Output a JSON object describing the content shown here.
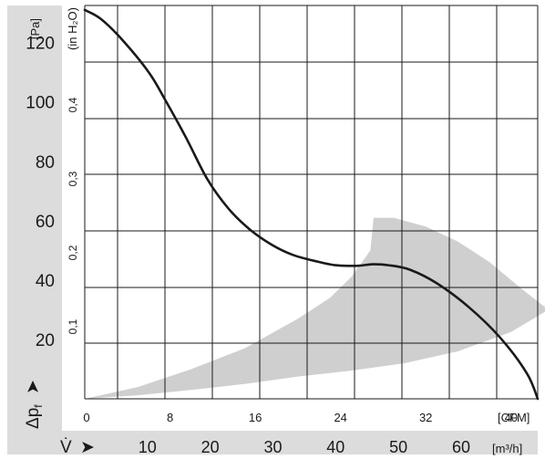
{
  "chart_data": {
    "type": "line",
    "primary_y_unit": "[Pa]",
    "secondary_y_unit": "(in H₂O)",
    "primary_x_unit": "[CFM]",
    "secondary_x_unit": "[m³/h]",
    "y_symbol": "Δp",
    "y_symbol_sub": "f",
    "x_symbol": "V̇",
    "arrow": "➤",
    "ylim": [
      0,
      132.5
    ],
    "xlim": [
      0,
      42.5
    ],
    "y_ticks": [
      20,
      40,
      60,
      80,
      100,
      120
    ],
    "y_tick_labels": [
      "20",
      "40",
      "60",
      "80",
      "100",
      "120"
    ],
    "y2_ticks": [
      24.9,
      49.8,
      74.7,
      99.6
    ],
    "y2_tick_labels": [
      "0,1",
      "0,2",
      "0,3",
      "0,4"
    ],
    "x_ticks": [
      0,
      8,
      16,
      24,
      32,
      40
    ],
    "x_tick_labels": [
      "0",
      "8",
      "16",
      "24",
      "32",
      "40"
    ],
    "x2_ticks": [
      5.886,
      11.772,
      17.658,
      23.544,
      29.43,
      35.316
    ],
    "x2_tick_labels": [
      "10",
      "20",
      "30",
      "40",
      "50",
      "60"
    ],
    "grid": true,
    "region_color": "#cfcfcf",
    "curve_color": "#1a1a1a",
    "sidebar_color": "#dcdcdc",
    "series": [
      {
        "x": [
          0,
          1.5,
          3.5,
          6,
          7.5,
          9.5,
          11.5,
          13.5,
          15.5,
          17.5,
          19.5,
          21.5,
          23.5,
          25.5,
          27,
          28.5,
          30.5,
          33,
          36,
          39,
          41.5,
          42.5
        ],
        "y": [
          131,
          128,
          121,
          110,
          101,
          88,
          74,
          64,
          57,
          52,
          48.5,
          46.5,
          45,
          44.8,
          45.3,
          45,
          43.5,
          39,
          31,
          20.5,
          8.5,
          0
        ]
      }
    ],
    "region": {
      "upper": {
        "x": [
          0,
          5,
          10,
          15,
          20,
          23,
          25,
          26.8,
          27.1,
          29,
          32,
          35,
          38,
          41,
          43.5
        ],
        "y": [
          0,
          4,
          10,
          17,
          27,
          34,
          41,
          50,
          61,
          61,
          58,
          53,
          46,
          37,
          30
        ]
      },
      "lower": {
        "x": [
          43.5,
          40,
          35,
          30,
          25,
          20,
          15,
          10,
          5,
          0
        ],
        "y": [
          30,
          22.5,
          16,
          12,
          9.5,
          7.5,
          5,
          3,
          1.2,
          0
        ]
      }
    }
  }
}
